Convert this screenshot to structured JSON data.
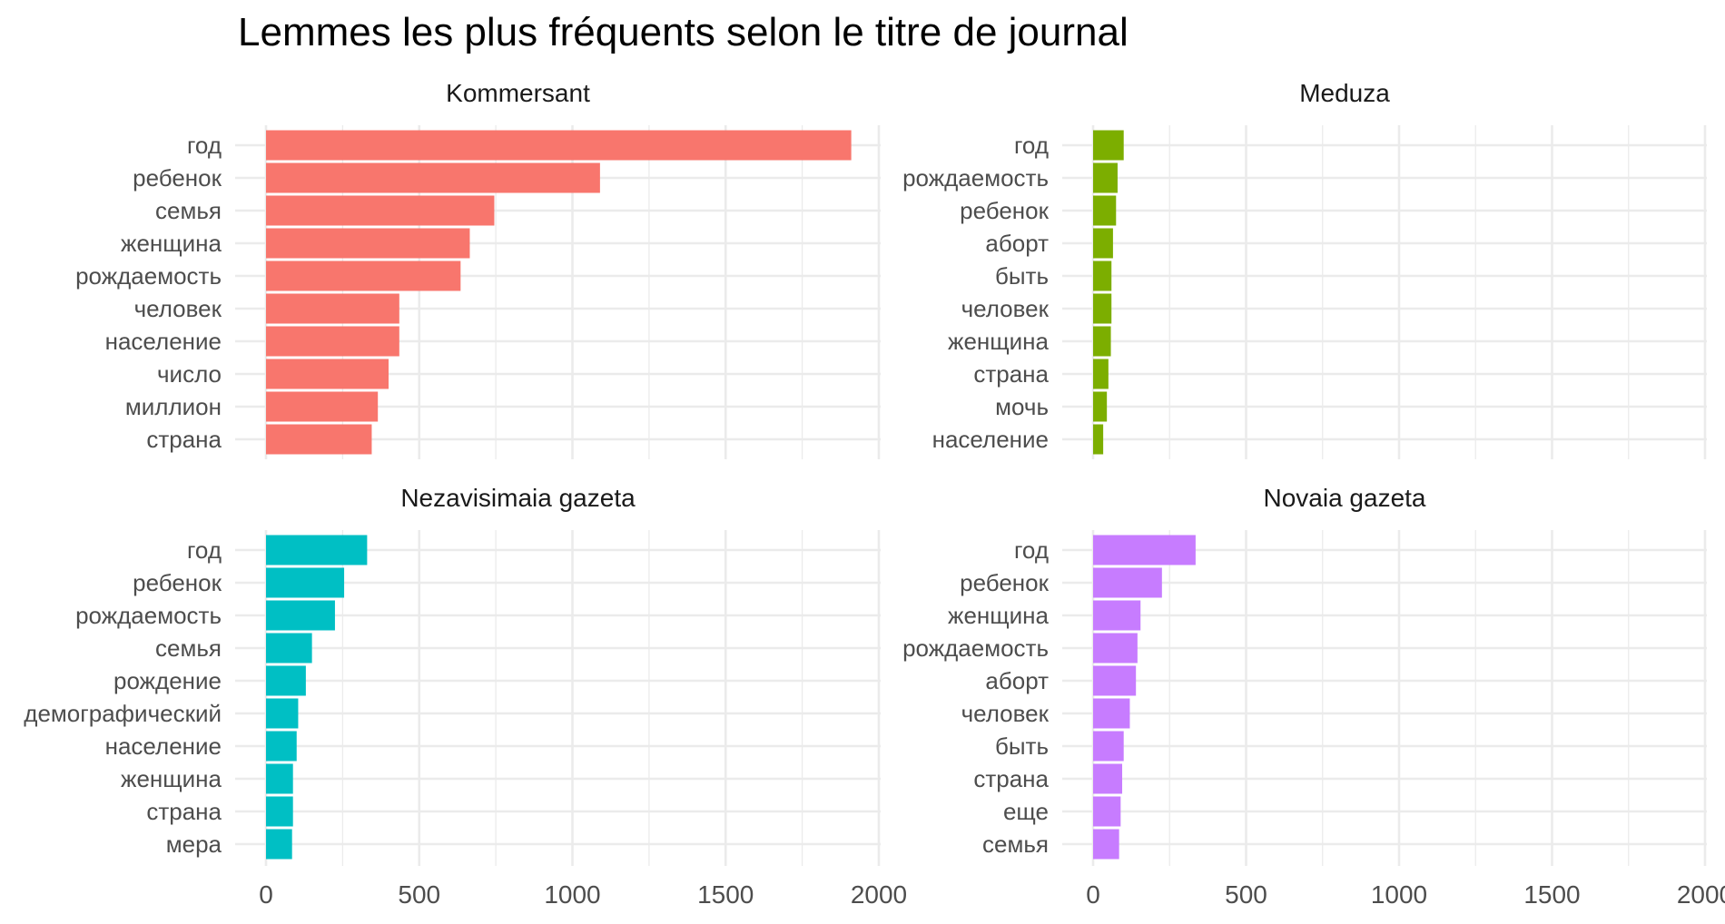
{
  "chart_data": {
    "type": "bar",
    "title": "Lemmes les plus fréquents selon le titre de journal",
    "orientation": "horizontal",
    "xlim": [
      0,
      2000
    ],
    "x_ticks": [
      0,
      500,
      1000,
      1500,
      2000
    ],
    "x_tick_labels": [
      "0",
      "500",
      "1000",
      "1500",
      "2000"
    ],
    "grid": true,
    "legend": "none",
    "panels": [
      {
        "name": "Kommersant",
        "color": "#F8766D",
        "categories": [
          "год",
          "ребенок",
          "семья",
          "женщина",
          "рождаемость",
          "человек",
          "население",
          "число",
          "миллион",
          "страна"
        ],
        "values": [
          1910,
          1090,
          745,
          665,
          635,
          435,
          435,
          400,
          365,
          345
        ]
      },
      {
        "name": "Meduza",
        "color": "#7CAE00",
        "categories": [
          "год",
          "рождаемость",
          "ребенок",
          "аборт",
          "быть",
          "человек",
          "женщина",
          "страна",
          "мочь",
          "население"
        ],
        "values": [
          100,
          80,
          75,
          65,
          60,
          60,
          58,
          50,
          45,
          33
        ]
      },
      {
        "name": "Nezavisimaia gazeta",
        "color": "#00BFC4",
        "categories": [
          "год",
          "ребенок",
          "рождаемость",
          "семья",
          "рождение",
          "демографический",
          "население",
          "женщина",
          "страна",
          "мера"
        ],
        "values": [
          330,
          255,
          225,
          150,
          130,
          105,
          100,
          88,
          88,
          85
        ]
      },
      {
        "name": "Novaia gazeta",
        "color": "#C77CFF",
        "categories": [
          "год",
          "ребенок",
          "женщина",
          "рождаемость",
          "аборт",
          "человек",
          "быть",
          "страна",
          "еще",
          "семья"
        ],
        "values": [
          335,
          225,
          155,
          145,
          140,
          120,
          100,
          95,
          90,
          85
        ]
      }
    ]
  }
}
